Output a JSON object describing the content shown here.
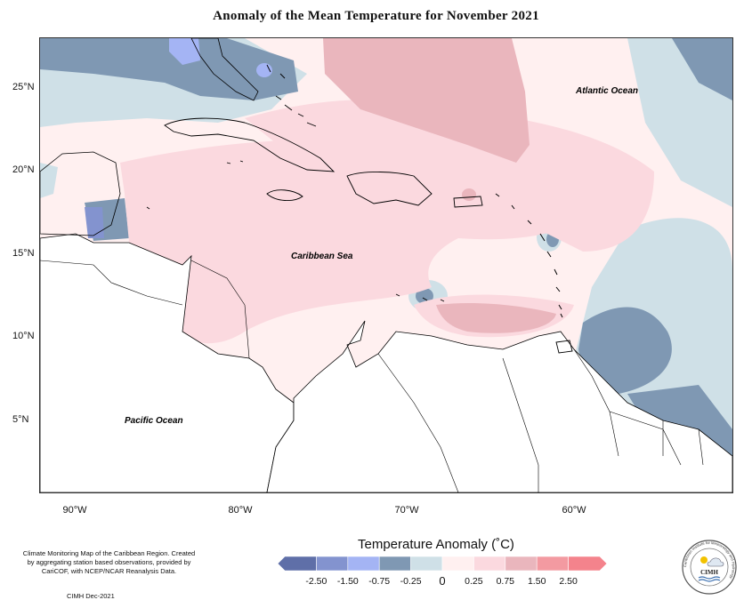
{
  "title": "Anomaly of the Mean Temperature for November 2021",
  "map": {
    "lat_labels": [
      "25°N",
      "20°N",
      "15°N",
      "10°N",
      "5°N"
    ],
    "lon_labels": [
      "90°W",
      "80°W",
      "70°W",
      "60°W"
    ],
    "ocean_labels": {
      "atlantic": "Atlantic Ocean",
      "caribbean": "Caribbean Sea",
      "pacific": "Pacific Ocean"
    }
  },
  "legend": {
    "title": "Temperature Anomaly (˚C)",
    "ticks": [
      "-2.50",
      "-1.50",
      "-0.75",
      "-0.25",
      "0",
      "0.25",
      "0.75",
      "1.50",
      "2.50"
    ],
    "colors": [
      "#5f6fa8",
      "#8393cf",
      "#a4b4f4",
      "#7f98b3",
      "#cfe0e7",
      "#fff0f0",
      "#fbd9df",
      "#eab6bd",
      "#f39aa1",
      "#f4838c"
    ]
  },
  "credits": {
    "text": "Climate Monitoring Map of the Caribbean Region. Created by aggregating station based observations, provided by CariCOF, with NCEP/NCAR Reanalysis Data.",
    "date": "CIMH Dec-2021"
  },
  "logo": {
    "ring_text": "Caribbean Institute for Meteorology and Hydrology",
    "abbr": "CIMH"
  }
}
